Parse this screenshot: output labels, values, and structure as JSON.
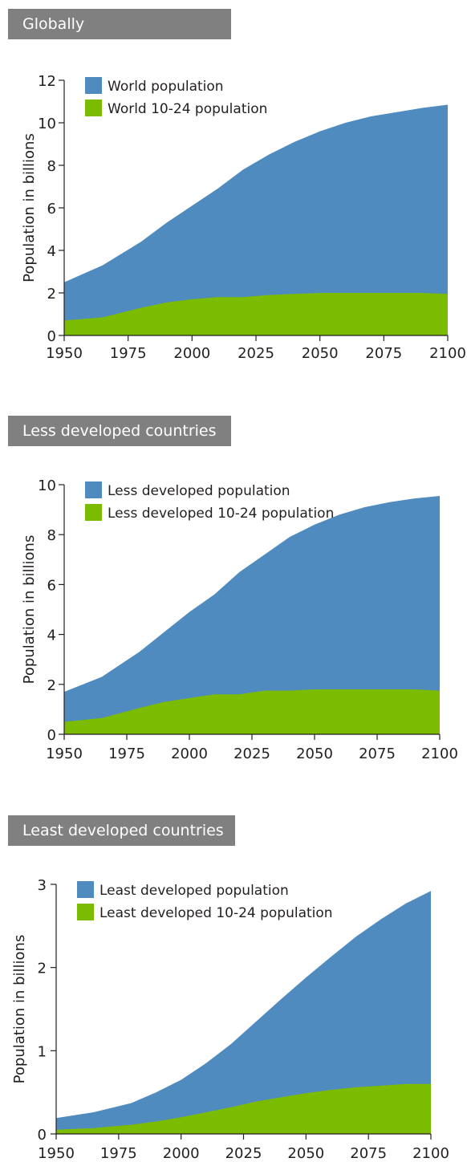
{
  "colors": {
    "total": "#4f8bbf",
    "youth": "#7cbc00",
    "label_bg": "#808080"
  },
  "chart_data": [
    {
      "type": "area",
      "section_label": "Globally",
      "ylabel": "Population in billions",
      "xlim": [
        1950,
        2100
      ],
      "ylim": [
        0,
        12
      ],
      "x_ticks": [
        "1950",
        "1975",
        "2000",
        "2025",
        "2050",
        "2075",
        "2100"
      ],
      "y_ticks": [
        "0",
        "2",
        "4",
        "6",
        "8",
        "10",
        "12"
      ],
      "grid": false,
      "legend_position": "top-left",
      "x": [
        1950,
        1965,
        1980,
        1990,
        2000,
        2010,
        2020,
        2030,
        2040,
        2050,
        2060,
        2070,
        2080,
        2090,
        2100
      ],
      "series": [
        {
          "name": "World population",
          "color_key": "total",
          "values": [
            2.5,
            3.3,
            4.4,
            5.3,
            6.1,
            6.9,
            7.8,
            8.5,
            9.1,
            9.6,
            10.0,
            10.3,
            10.5,
            10.7,
            10.85
          ]
        },
        {
          "name": "World 10-24 population",
          "color_key": "youth",
          "values": [
            0.7,
            0.85,
            1.3,
            1.55,
            1.7,
            1.8,
            1.8,
            1.9,
            1.95,
            2.0,
            2.0,
            2.0,
            2.0,
            2.0,
            1.95
          ]
        }
      ]
    },
    {
      "type": "area",
      "section_label": "Less developed countries",
      "ylabel": "Population in billions",
      "xlim": [
        1950,
        2100
      ],
      "ylim": [
        0,
        10
      ],
      "x_ticks": [
        "1950",
        "1975",
        "2000",
        "2025",
        "2050",
        "2075",
        "2100"
      ],
      "y_ticks": [
        "0",
        "2",
        "4",
        "6",
        "8",
        "10"
      ],
      "grid": false,
      "legend_position": "top-left",
      "x": [
        1950,
        1965,
        1980,
        1990,
        2000,
        2010,
        2020,
        2030,
        2040,
        2050,
        2060,
        2070,
        2080,
        2090,
        2100
      ],
      "series": [
        {
          "name": "Less developed population",
          "color_key": "total",
          "values": [
            1.7,
            2.3,
            3.3,
            4.1,
            4.9,
            5.6,
            6.5,
            7.2,
            7.9,
            8.4,
            8.8,
            9.1,
            9.3,
            9.45,
            9.55
          ]
        },
        {
          "name": "Less developed 10-24 population",
          "color_key": "youth",
          "values": [
            0.5,
            0.65,
            1.05,
            1.3,
            1.45,
            1.6,
            1.6,
            1.75,
            1.75,
            1.8,
            1.8,
            1.8,
            1.8,
            1.8,
            1.75
          ]
        }
      ]
    },
    {
      "type": "area",
      "section_label": "Least developed countries",
      "ylabel": "Population in billions",
      "xlim": [
        1950,
        2100
      ],
      "ylim": [
        0,
        3
      ],
      "x_ticks": [
        "1950",
        "1975",
        "2000",
        "2025",
        "2050",
        "2075",
        "2100"
      ],
      "y_ticks": [
        "0",
        "1",
        "2",
        "3"
      ],
      "grid": false,
      "legend_position": "top-left",
      "x": [
        1950,
        1965,
        1980,
        1990,
        2000,
        2010,
        2020,
        2030,
        2040,
        2050,
        2060,
        2070,
        2080,
        2090,
        2100
      ],
      "series": [
        {
          "name": "Least developed population",
          "color_key": "total",
          "values": [
            0.19,
            0.26,
            0.37,
            0.5,
            0.65,
            0.85,
            1.08,
            1.35,
            1.62,
            1.88,
            2.13,
            2.37,
            2.58,
            2.77,
            2.92
          ]
        },
        {
          "name": "Least developed 10-24 population",
          "color_key": "youth",
          "values": [
            0.05,
            0.07,
            0.11,
            0.15,
            0.2,
            0.26,
            0.32,
            0.39,
            0.44,
            0.49,
            0.53,
            0.56,
            0.58,
            0.6,
            0.6
          ]
        }
      ]
    }
  ]
}
